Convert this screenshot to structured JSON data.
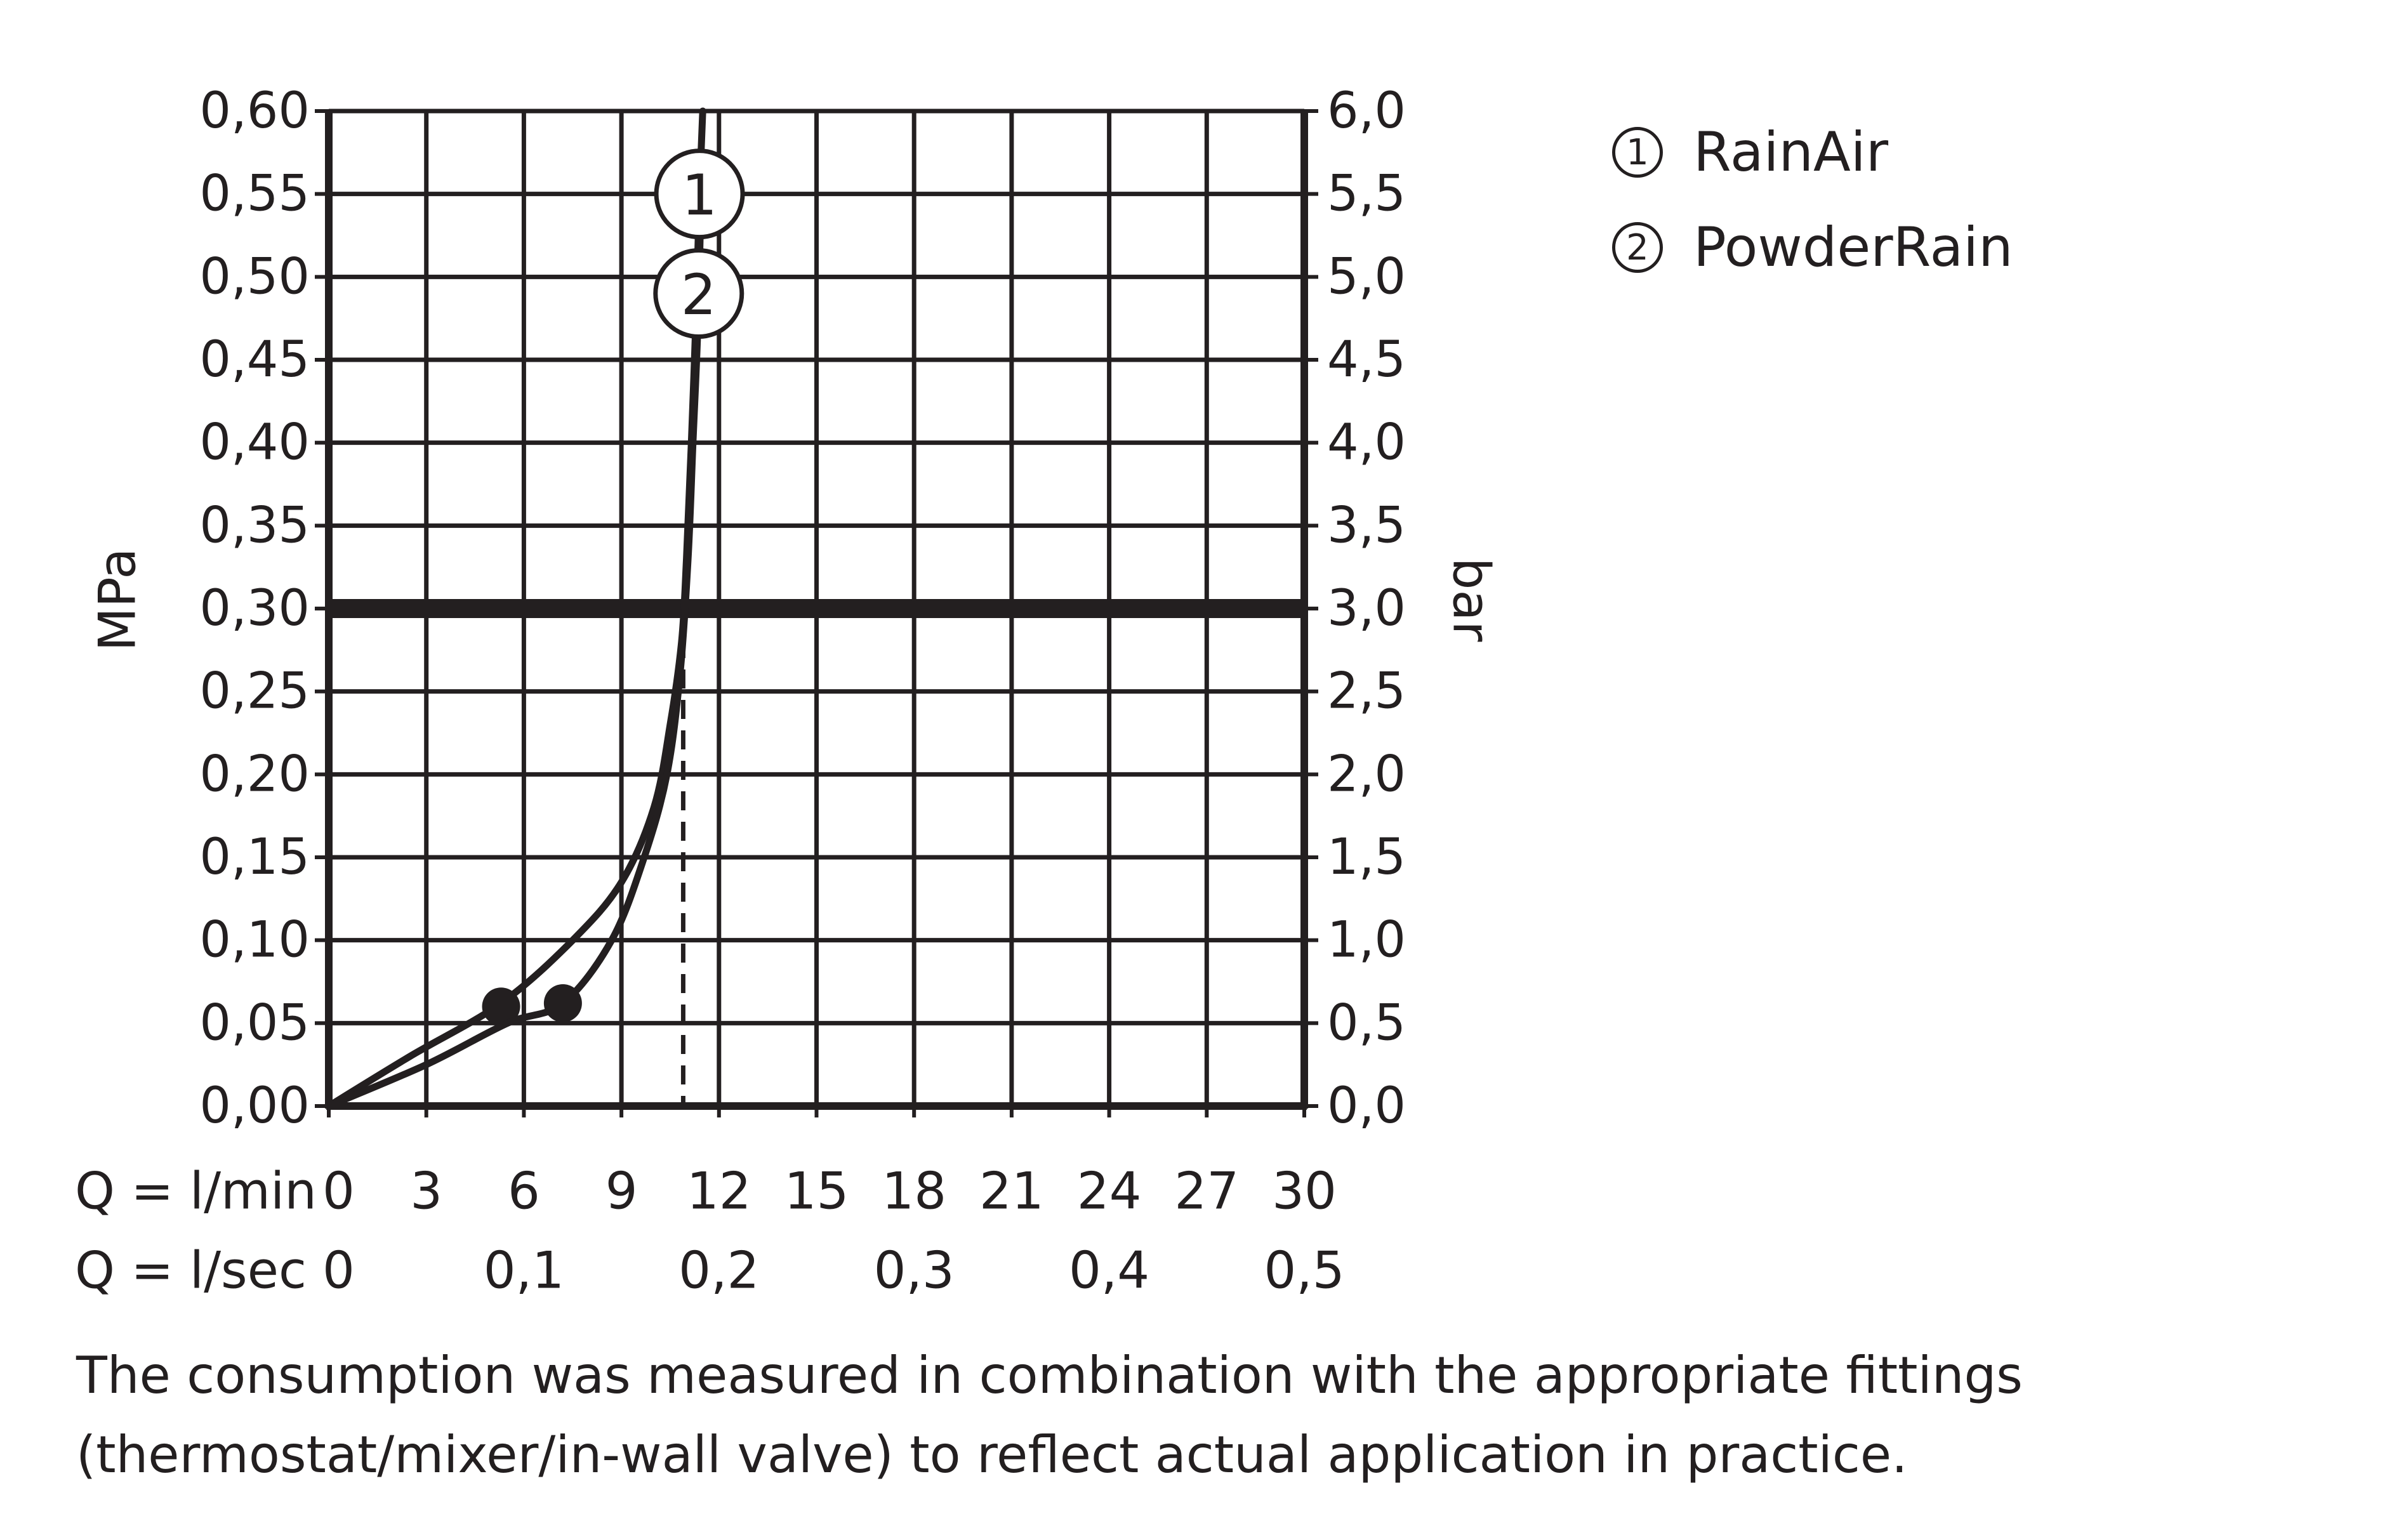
{
  "chart_data": {
    "type": "line",
    "title": "",
    "ylabel_left": "MPa",
    "ylabel_right": "bar",
    "x_unit_label": "Q = l/min",
    "x2_unit_label": "Q = l/sec",
    "xlim": [
      0,
      30
    ],
    "ylim": [
      0,
      0.6
    ],
    "grid": true,
    "x_ticks": [
      "0",
      "3",
      "6",
      "9",
      "12",
      "15",
      "18",
      "21",
      "24",
      "27",
      "30"
    ],
    "x2_ticks": [
      {
        "x": 0,
        "label": "0"
      },
      {
        "x": 6,
        "label": "0,1"
      },
      {
        "x": 12,
        "label": "0,2"
      },
      {
        "x": 18,
        "label": "0,3"
      },
      {
        "x": 24,
        "label": "0,4"
      },
      {
        "x": 30,
        "label": "0,5"
      }
    ],
    "y_ticks_left": [
      "0,00",
      "0,05",
      "0,10",
      "0,15",
      "0,20",
      "0,25",
      "0,30",
      "0,35",
      "0,40",
      "0,45",
      "0,50",
      "0,55",
      "0,60"
    ],
    "y_ticks_right": [
      "0,0",
      "0,5",
      "1,0",
      "1,5",
      "2,0",
      "2,5",
      "3,0",
      "3,5",
      "4,0",
      "4,5",
      "5,0",
      "5,5",
      "6,0"
    ],
    "reference_line": {
      "y": 0.3
    },
    "reference_drop": {
      "x": 10.9,
      "y_from": 0.3,
      "y_to": 0
    },
    "series": [
      {
        "name": "RainAir",
        "marker": "1",
        "x": [
          0,
          2.5,
          5.3,
          7.5,
          9.0,
          10.0,
          10.5,
          10.85,
          11.0,
          11.15,
          11.3,
          11.4,
          11.5
        ],
        "y": [
          0,
          0.03,
          0.062,
          0.1,
          0.135,
          0.18,
          0.23,
          0.28,
          0.33,
          0.4,
          0.48,
          0.55,
          0.6
        ],
        "min_pressure_point": {
          "x": 5.3,
          "y": 0.06
        },
        "label_at_y": 0.55
      },
      {
        "name": "PowderRain",
        "marker": "2",
        "x": [
          0,
          3.0,
          5.5,
          7.2,
          8.7,
          9.7,
          10.4,
          10.8,
          11.05,
          11.2,
          11.35,
          11.45
        ],
        "y": [
          0,
          0.025,
          0.05,
          0.062,
          0.1,
          0.15,
          0.2,
          0.26,
          0.33,
          0.4,
          0.47,
          0.55
        ],
        "min_pressure_point": {
          "x": 7.2,
          "y": 0.062
        },
        "label_at_y": 0.49
      }
    ]
  },
  "legend": [
    {
      "marker": "1",
      "name": "RainAir"
    },
    {
      "marker": "2",
      "name": "PowderRain"
    }
  ],
  "footnote": "The consumption was measured in combination with the appropriate fittings (thermostat/mixer/in-wall valve) to reflect actual application in practice."
}
